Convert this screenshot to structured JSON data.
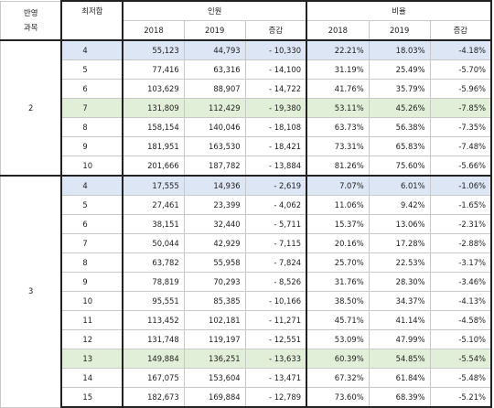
{
  "header": {
    "col_group1_line1": "반영",
    "col_group1_line2": "과목",
    "col_min": "최저합",
    "persons": "인원",
    "ratio": "비율",
    "y2018": "2018",
    "y2019": "2019",
    "change": "증감"
  },
  "groups": [
    {
      "label": "2",
      "rows": [
        {
          "min": "4",
          "p2018": "55,123",
          "p2019": "44,793",
          "pchg": "- 10,330",
          "r2018": "22.21%",
          "r2019": "18.03%",
          "rchg": "-4.18%",
          "hl": "blue"
        },
        {
          "min": "5",
          "p2018": "77,416",
          "p2019": "63,316",
          "pchg": "- 14,100",
          "r2018": "31.19%",
          "r2019": "25.49%",
          "rchg": "-5.70%",
          "hl": ""
        },
        {
          "min": "6",
          "p2018": "103,629",
          "p2019": "88,907",
          "pchg": "- 14,722",
          "r2018": "41.76%",
          "r2019": "35.79%",
          "rchg": "-5.96%",
          "hl": ""
        },
        {
          "min": "7",
          "p2018": "131,809",
          "p2019": "112,429",
          "pchg": "- 19,380",
          "r2018": "53.11%",
          "r2019": "45.26%",
          "rchg": "-7.85%",
          "hl": "green"
        },
        {
          "min": "8",
          "p2018": "158,154",
          "p2019": "140,046",
          "pchg": "- 18,108",
          "r2018": "63.73%",
          "r2019": "56.38%",
          "rchg": "-7.35%",
          "hl": ""
        },
        {
          "min": "9",
          "p2018": "181,951",
          "p2019": "163,530",
          "pchg": "- 18,421",
          "r2018": "73.31%",
          "r2019": "65.83%",
          "rchg": "-7.48%",
          "hl": ""
        },
        {
          "min": "10",
          "p2018": "201,666",
          "p2019": "187,782",
          "pchg": "- 13,884",
          "r2018": "81.26%",
          "r2019": "75.60%",
          "rchg": "-5.66%",
          "hl": ""
        }
      ]
    },
    {
      "label": "3",
      "rows": [
        {
          "min": "4",
          "p2018": "17,555",
          "p2019": "14,936",
          "pchg": "- 2,619",
          "r2018": "7.07%",
          "r2019": "6.01%",
          "rchg": "-1.06%",
          "hl": "blue"
        },
        {
          "min": "5",
          "p2018": "27,461",
          "p2019": "23,399",
          "pchg": "- 4,062",
          "r2018": "11.06%",
          "r2019": "9.42%",
          "rchg": "-1.65%",
          "hl": ""
        },
        {
          "min": "6",
          "p2018": "38,151",
          "p2019": "32,440",
          "pchg": "- 5,711",
          "r2018": "15.37%",
          "r2019": "13.06%",
          "rchg": "-2.31%",
          "hl": ""
        },
        {
          "min": "7",
          "p2018": "50,044",
          "p2019": "42,929",
          "pchg": "- 7,115",
          "r2018": "20.16%",
          "r2019": "17.28%",
          "rchg": "-2.88%",
          "hl": ""
        },
        {
          "min": "8",
          "p2018": "63,782",
          "p2019": "55,958",
          "pchg": "- 7,824",
          "r2018": "25.70%",
          "r2019": "22.53%",
          "rchg": "-3.17%",
          "hl": ""
        },
        {
          "min": "9",
          "p2018": "78,819",
          "p2019": "70,293",
          "pchg": "- 8,526",
          "r2018": "31.76%",
          "r2019": "28.30%",
          "rchg": "-3.46%",
          "hl": ""
        },
        {
          "min": "10",
          "p2018": "95,551",
          "p2019": "85,385",
          "pchg": "- 10,166",
          "r2018": "38.50%",
          "r2019": "34.37%",
          "rchg": "-4.13%",
          "hl": ""
        },
        {
          "min": "11",
          "p2018": "113,452",
          "p2019": "102,181",
          "pchg": "- 11,271",
          "r2018": "45.71%",
          "r2019": "41.14%",
          "rchg": "-4.58%",
          "hl": ""
        },
        {
          "min": "12",
          "p2018": "131,748",
          "p2019": "119,197",
          "pchg": "- 12,551",
          "r2018": "53.09%",
          "r2019": "47.99%",
          "rchg": "-5.10%",
          "hl": ""
        },
        {
          "min": "13",
          "p2018": "149,884",
          "p2019": "136,251",
          "pchg": "- 13,633",
          "r2018": "60.39%",
          "r2019": "54.85%",
          "rchg": "-5.54%",
          "hl": "green"
        },
        {
          "min": "14",
          "p2018": "167,075",
          "p2019": "153,604",
          "pchg": "- 13,471",
          "r2018": "67.32%",
          "r2019": "61.84%",
          "rchg": "-5.48%",
          "hl": ""
        },
        {
          "min": "15",
          "p2018": "182,673",
          "p2019": "169,884",
          "pchg": "- 12,789",
          "r2018": "73.60%",
          "r2019": "68.39%",
          "rchg": "-5.21%",
          "hl": ""
        }
      ]
    }
  ],
  "colors": {
    "highlight_blue": "#dce6f4",
    "highlight_green": "#e2efd8",
    "grid": "#c8c8c8",
    "thick_border": "#222222"
  }
}
